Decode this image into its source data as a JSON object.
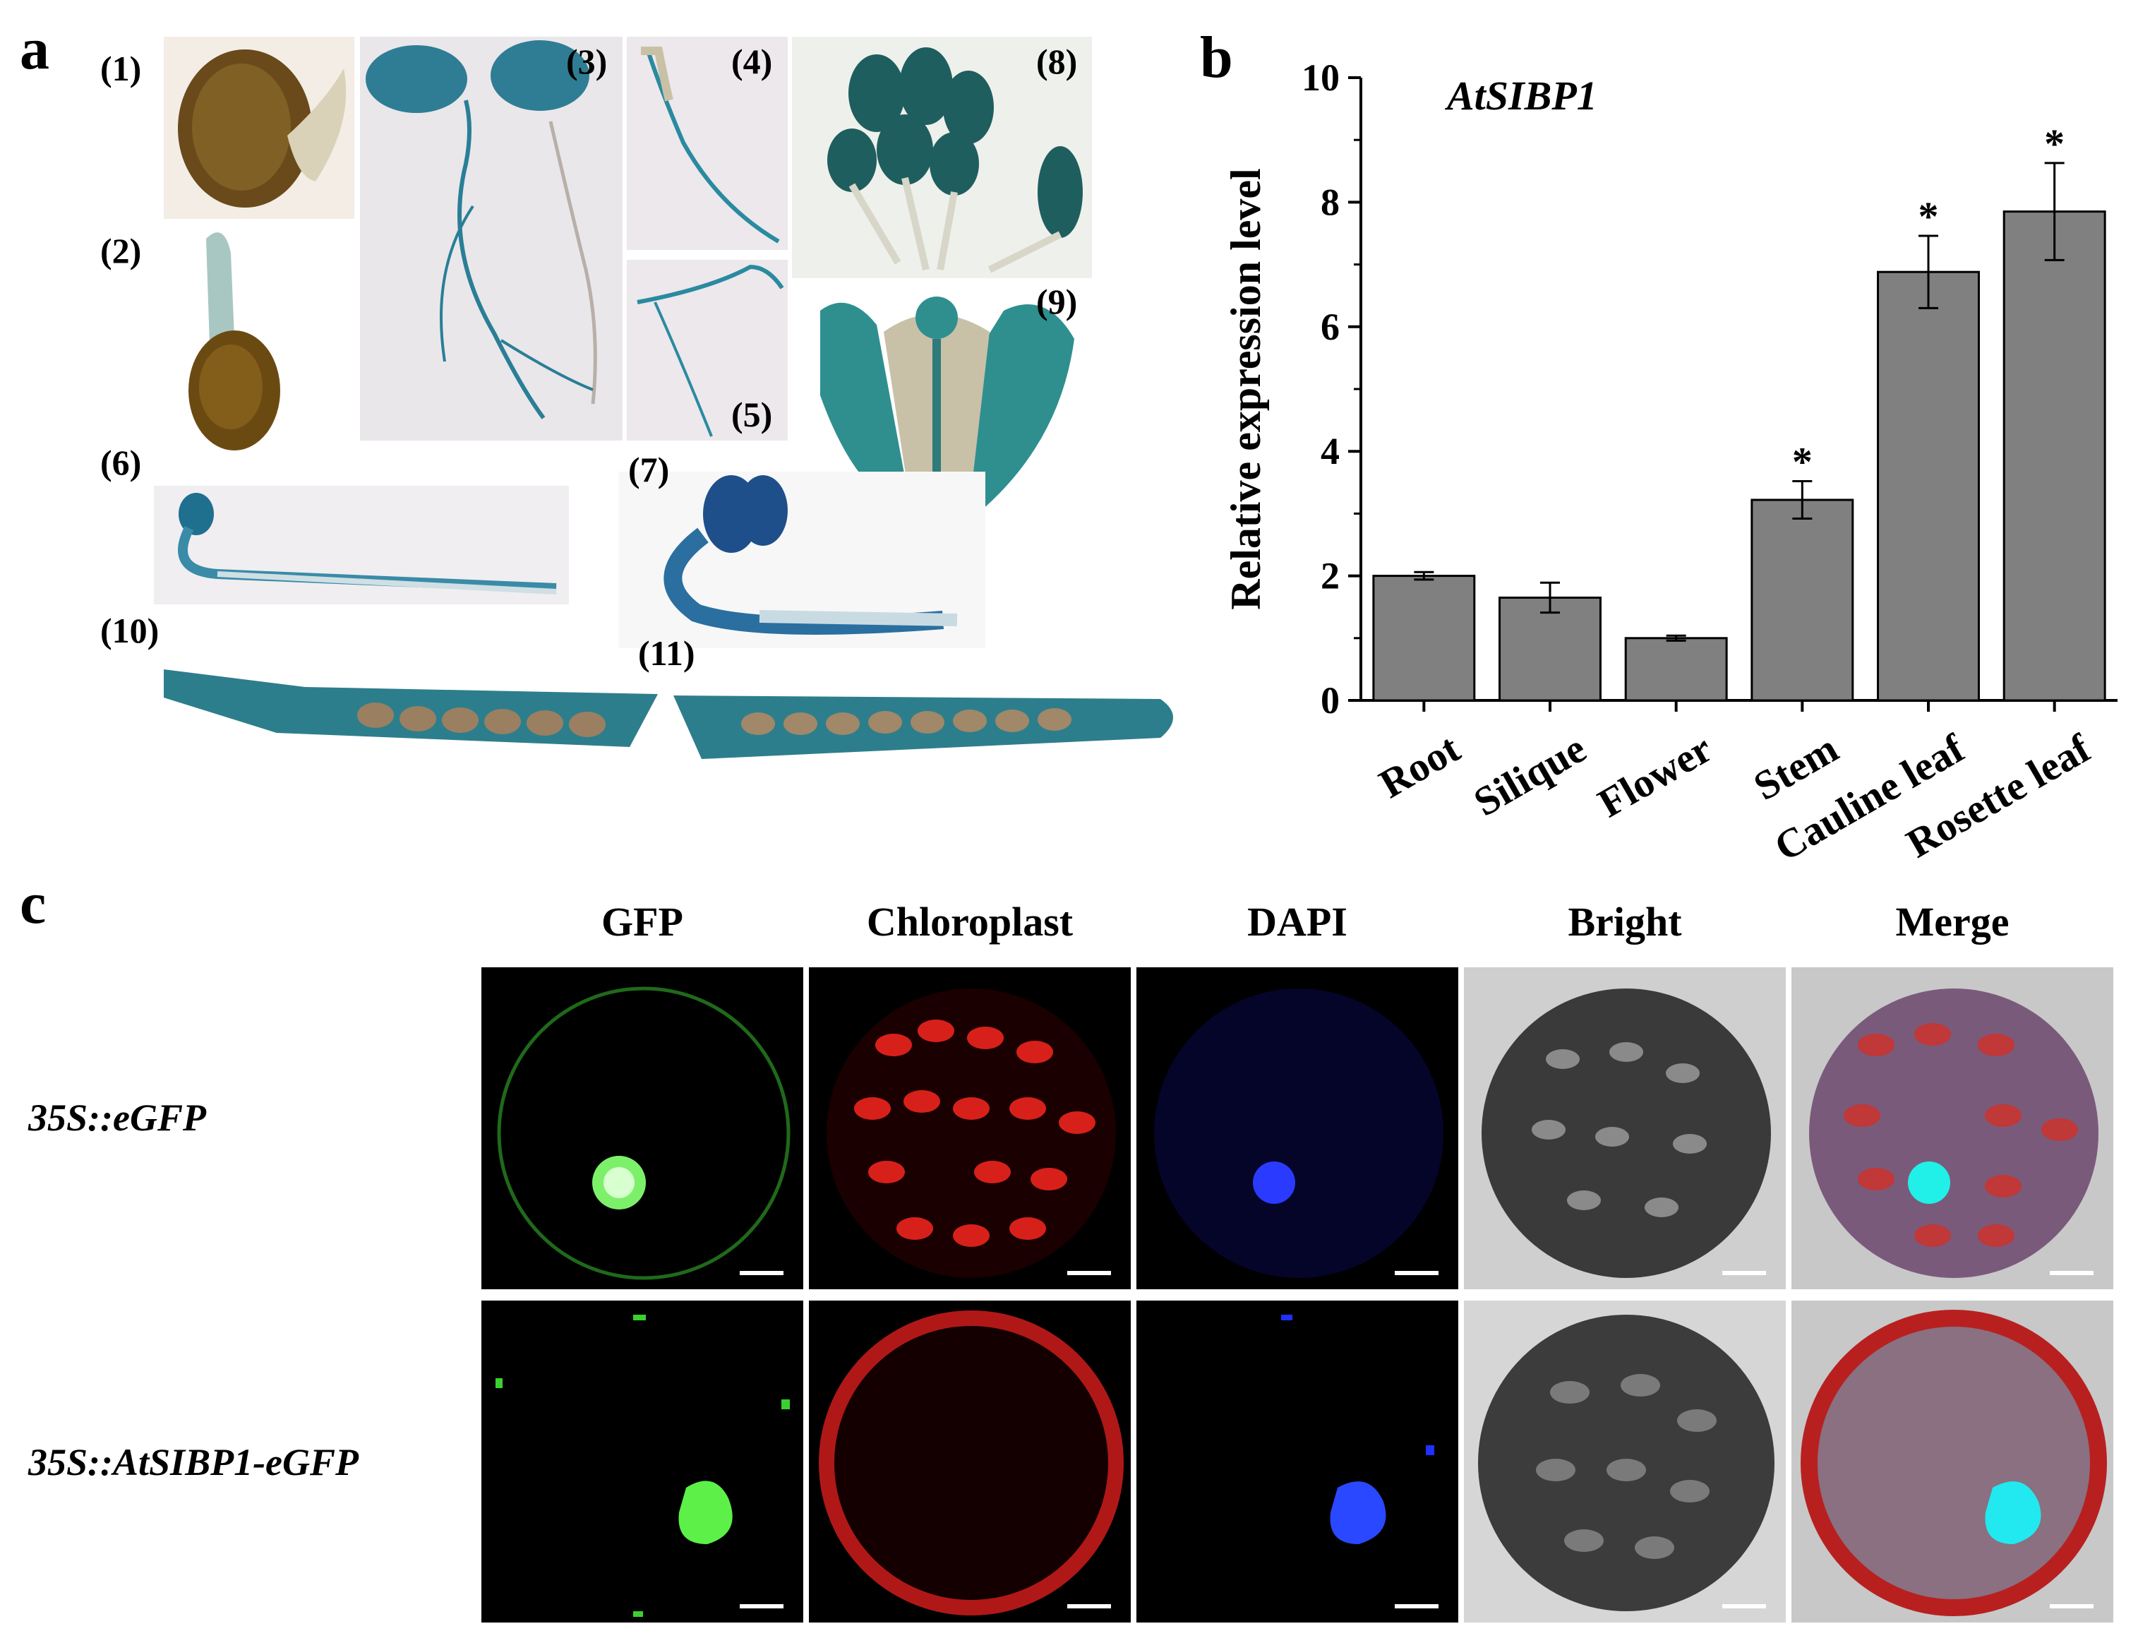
{
  "figure": {
    "panel_a": {
      "letter": "a",
      "labels": [
        "(1)",
        "(2)",
        "(3)",
        "(4)",
        "(5)",
        "(6)",
        "(7)",
        "(8)",
        "(9)",
        "(10)",
        "(11)"
      ]
    },
    "panel_b": {
      "letter": "b"
    },
    "panel_c": {
      "letter": "c",
      "columns": [
        "GFP",
        "Chloroplast",
        "DAPI",
        "Bright",
        "Merge"
      ],
      "rows": [
        "35S::eGFP",
        "35S::AtSIBP1-eGFP"
      ]
    }
  },
  "chart_data": {
    "type": "bar",
    "title": "AtSIBP1",
    "xlabel": "",
    "ylabel": "Relative expression level",
    "categories": [
      "Root",
      "Silique",
      "Flower",
      "Stem",
      "Cauline leaf",
      "Rosette leaf"
    ],
    "values": [
      2.0,
      1.65,
      1.0,
      3.22,
      6.88,
      7.85
    ],
    "errors": [
      0.06,
      0.24,
      0.04,
      0.3,
      0.58,
      0.78
    ],
    "significance": [
      "",
      "",
      "",
      "*",
      "*",
      "*"
    ],
    "ylim": [
      0,
      10
    ],
    "yticks": [
      "0",
      "2",
      "4",
      "6",
      "8",
      "10"
    ],
    "bar_color": "#808080",
    "grid": false
  }
}
